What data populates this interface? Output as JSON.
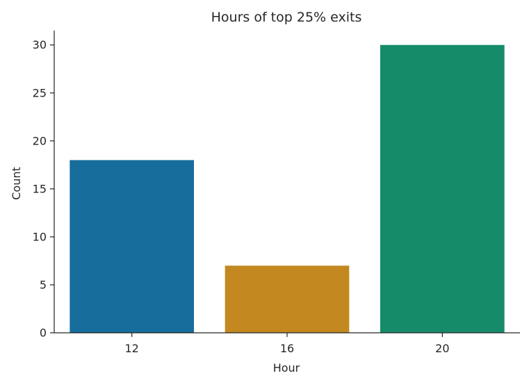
{
  "chart_data": {
    "type": "bar",
    "title": "Hours of top 25% exits",
    "xlabel": "Hour",
    "ylabel": "Count",
    "categories": [
      "12",
      "16",
      "20"
    ],
    "values": [
      18,
      7,
      30
    ],
    "colors": [
      "#176d9c",
      "#c38820",
      "#158b6a"
    ],
    "ylim": [
      0,
      31.5
    ],
    "yticks": [
      0,
      5,
      10,
      15,
      20,
      25,
      30
    ],
    "grid": false,
    "legend": "none"
  }
}
